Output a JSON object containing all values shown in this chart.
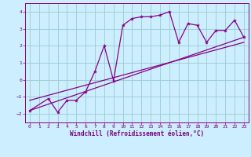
{
  "title": "",
  "xlabel": "Windchill (Refroidissement éolien,°C)",
  "ylabel": "",
  "xlim": [
    -0.5,
    23.5
  ],
  "ylim": [
    -2.5,
    4.5
  ],
  "xticks": [
    0,
    1,
    2,
    3,
    4,
    5,
    6,
    7,
    8,
    9,
    10,
    11,
    12,
    13,
    14,
    15,
    16,
    17,
    18,
    19,
    20,
    21,
    22,
    23
  ],
  "yticks": [
    -2,
    -1,
    0,
    1,
    2,
    3,
    4
  ],
  "bg_color": "#cceeff",
  "line_color": "#880088",
  "grid_color": "#99cccc",
  "data_x": [
    0,
    2,
    3,
    4,
    5,
    6,
    7,
    8,
    9,
    10,
    11,
    12,
    13,
    14,
    15,
    16,
    17,
    18,
    19,
    20,
    21,
    22,
    23
  ],
  "data_y": [
    -1.8,
    -1.1,
    -1.9,
    -1.2,
    -1.2,
    -0.7,
    0.5,
    2.0,
    -0.05,
    3.2,
    3.6,
    3.7,
    3.7,
    3.8,
    4.0,
    2.2,
    3.3,
    3.2,
    2.2,
    2.9,
    2.9,
    3.5,
    2.5
  ],
  "trend1_x": [
    0,
    23
  ],
  "trend1_y": [
    -1.8,
    2.5
  ],
  "trend2_x": [
    0,
    23
  ],
  "trend2_y": [
    -1.2,
    2.2
  ],
  "font_color": "#770077",
  "tick_fontsize": 4.5,
  "label_fontsize": 5.5,
  "label_fontweight": "bold"
}
